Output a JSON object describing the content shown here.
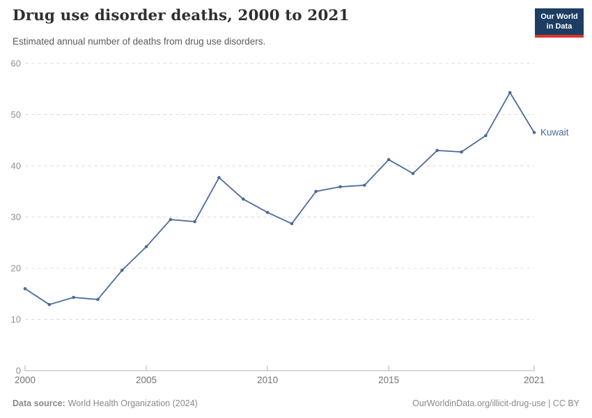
{
  "header": {
    "title": "Drug use disorder deaths, 2000 to 2021",
    "subtitle": "Estimated annual number of deaths from drug use disorders."
  },
  "logo": {
    "line1": "Our World",
    "line2": "in Data",
    "bg_color": "#1d3d63",
    "accent_color": "#dc352c"
  },
  "chart_data": {
    "type": "line",
    "title": "Drug use disorder deaths, 2000 to 2021",
    "xlabel": "",
    "ylabel": "",
    "x": [
      2000,
      2001,
      2002,
      2003,
      2004,
      2005,
      2006,
      2007,
      2008,
      2009,
      2010,
      2011,
      2012,
      2013,
      2014,
      2015,
      2016,
      2017,
      2018,
      2019,
      2020,
      2021
    ],
    "series": [
      {
        "name": "Kuwait",
        "color": "#4c6a9c",
        "values": [
          16.0,
          12.9,
          14.3,
          13.9,
          19.6,
          24.2,
          29.5,
          29.1,
          37.7,
          33.5,
          30.9,
          28.7,
          35.0,
          35.9,
          36.2,
          41.2,
          38.5,
          43.0,
          42.7,
          45.9,
          54.3,
          46.5
        ]
      }
    ],
    "ylim": [
      0,
      60
    ],
    "yticks": [
      0,
      10,
      20,
      30,
      40,
      50,
      60
    ],
    "xticks": [
      2000,
      2005,
      2010,
      2015,
      2021
    ],
    "grid": "horizontal-dashed",
    "legend": "end-of-line-label",
    "marker": "dot"
  },
  "footer": {
    "source_label": "Data source:",
    "source_text": "World Health Organization (2024)",
    "credit": "OurWorldinData.org/illicit-drug-use | CC BY"
  },
  "colors": {
    "line": "#4c6a9c",
    "grid": "#dcdcdc",
    "axis": "#b3b3b3",
    "y_tick_label": "#8f8f8f",
    "x_tick_label": "#737373",
    "title_text": "#2f2f2f",
    "subtitle_text": "#5b5b5b",
    "footer_text": "#898989"
  }
}
